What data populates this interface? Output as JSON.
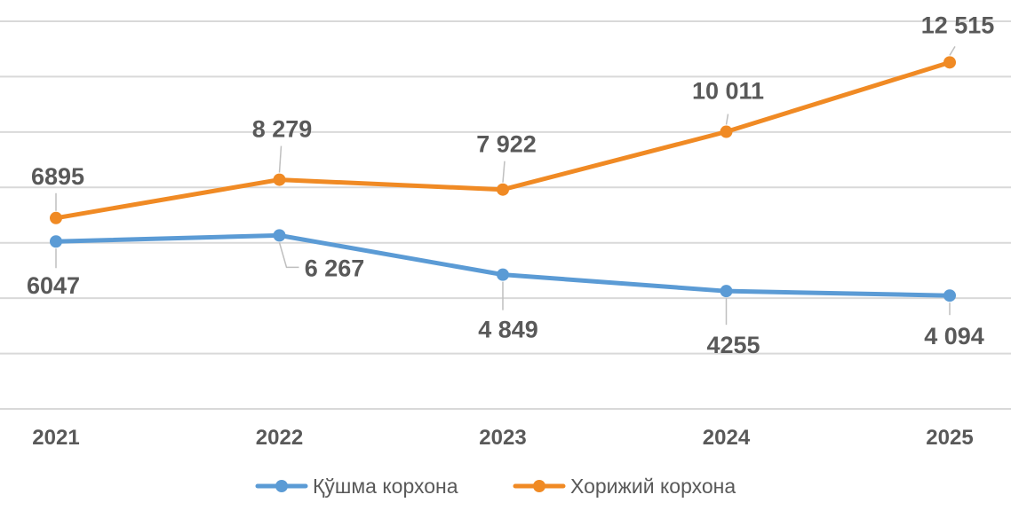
{
  "chart_data": {
    "type": "line",
    "title": "",
    "xlabel": "",
    "ylabel": "",
    "categories": [
      "2021",
      "2022",
      "2023",
      "2024",
      "2025"
    ],
    "series": [
      {
        "name": "Қўшма корхона",
        "color": "#5B9BD5",
        "values": [
          6047,
          6267,
          4849,
          4255,
          4094
        ],
        "labels": [
          "6047",
          "6 267",
          "4 849",
          "4255",
          "4 094"
        ]
      },
      {
        "name": "Хорижий корхона",
        "color": "#F08A24",
        "values": [
          6895,
          8279,
          7922,
          10011,
          12515
        ],
        "labels": [
          "6895",
          "8 279",
          "7 922",
          "10 011",
          "12 515"
        ]
      }
    ],
    "ylim": [
      0,
      14000
    ],
    "y_gridline_step": 2000,
    "y_tick_labels_shown": false,
    "grid": true,
    "gridline_color": "#D9D9D9",
    "legend_position": "bottom"
  }
}
